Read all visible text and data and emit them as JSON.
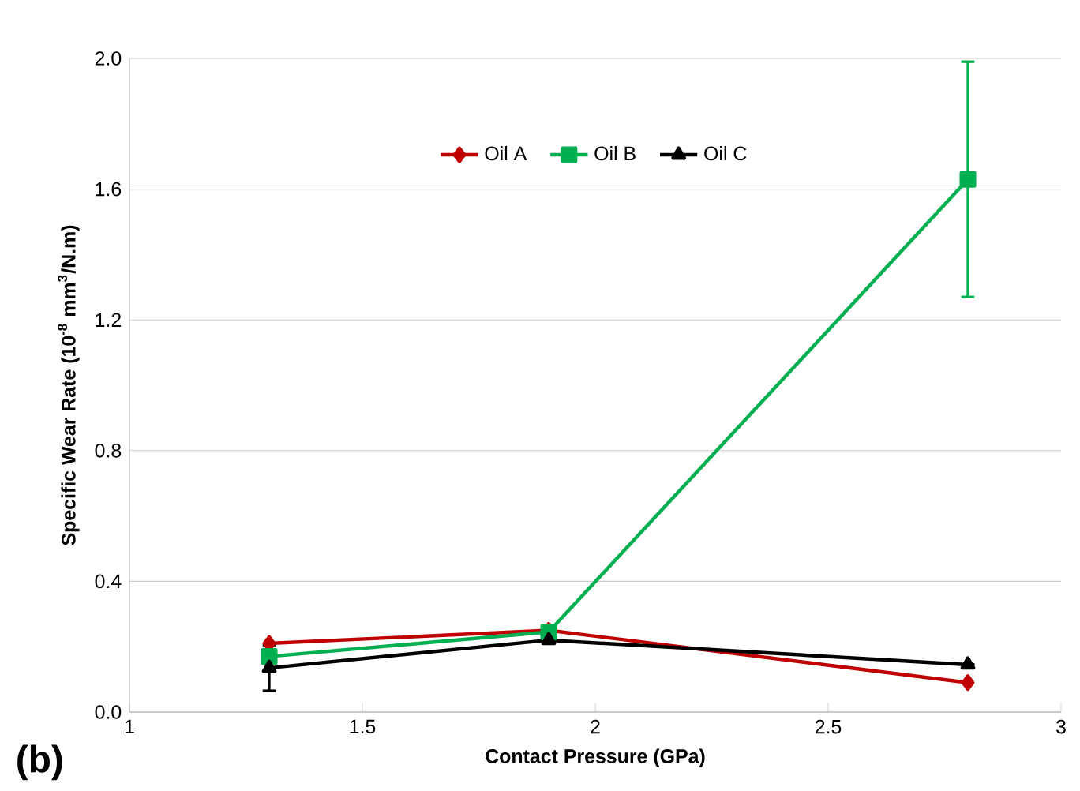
{
  "chart_data": {
    "type": "line",
    "xlabel": "Contact Pressure (GPa)",
    "ylabel": "Specific Wear Rate (10$^{-8}$ mm$^{3}$/N.m)",
    "x": [
      1.3,
      1.9,
      2.8
    ],
    "series": [
      {
        "name": "Oil A",
        "color": "#c00000",
        "marker": "diamond",
        "values": [
          0.21,
          0.25,
          0.09
        ]
      },
      {
        "name": "Oil B",
        "color": "#00b050",
        "marker": "square",
        "values": [
          0.17,
          0.245,
          1.63
        ],
        "errors": [
          null,
          null,
          0.36
        ]
      },
      {
        "name": "Oil C",
        "color": "#000000",
        "marker": "triangle",
        "values": [
          0.135,
          0.22,
          0.145
        ],
        "errors": [
          0.07,
          null,
          null
        ]
      }
    ],
    "xlim": [
      1,
      3
    ],
    "xticks": [
      1,
      1.5,
      2,
      2.5,
      3
    ],
    "ylim": [
      0,
      2
    ],
    "yticks": [
      {
        "value": 0,
        "label": "0.0"
      },
      {
        "value": 0.4,
        "label": "0.4"
      },
      {
        "value": 0.8,
        "label": "0.8"
      },
      {
        "value": 1.2,
        "label": "1.2"
      },
      {
        "value": 1.6,
        "label": "1.6"
      },
      {
        "value": 2,
        "label": "2.0"
      }
    ],
    "grid": "y",
    "legend": "top",
    "line_style": "solid",
    "annotations": [
      "(b)"
    ]
  }
}
